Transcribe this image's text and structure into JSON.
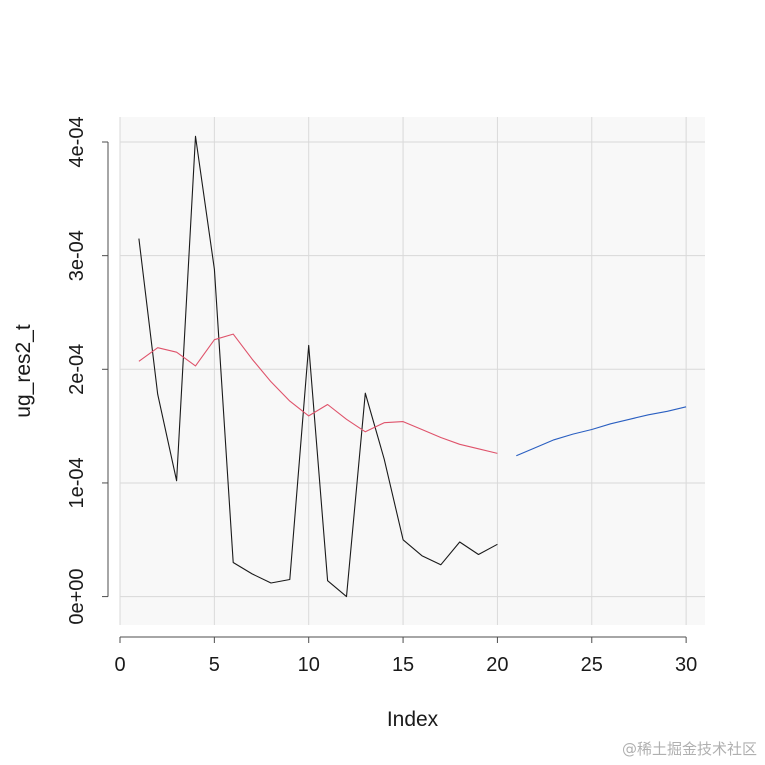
{
  "chart_data": {
    "type": "line",
    "xlabel": "Index",
    "ylabel": "ug_res2_t",
    "xlim": [
      0,
      31
    ],
    "ylim": [
      -2.5e-05,
      0.000422
    ],
    "x_ticks": [
      0,
      5,
      10,
      15,
      20,
      25,
      30
    ],
    "x_tick_labels": [
      "0",
      "5",
      "10",
      "15",
      "20",
      "25",
      "30"
    ],
    "y_ticks": [
      0,
      0.0001,
      0.0002,
      0.0003,
      0.0004
    ],
    "y_tick_labels": [
      "0e+00",
      "1e-04",
      "2e-04",
      "3e-04",
      "4e-04"
    ],
    "grid": true,
    "panel_background": "#f8f8f8",
    "series": [
      {
        "color": "#1a1a1a",
        "x": [
          1,
          2,
          3,
          4,
          5,
          6,
          7,
          8,
          9,
          10,
          11,
          12,
          13,
          14,
          15,
          16,
          17,
          18,
          19,
          20
        ],
        "y": [
          0.000315,
          0.000178,
          0.000102,
          0.000405,
          0.000288,
          3e-05,
          2e-05,
          1.2e-05,
          1.5e-05,
          0.000221,
          1.4e-05,
          0.0,
          0.000179,
          0.000121,
          5e-05,
          3.6e-05,
          2.8e-05,
          4.8e-05,
          3.7e-05,
          4.6e-05
        ]
      },
      {
        "color": "#df536b",
        "x": [
          1,
          2,
          3,
          4,
          5,
          6,
          7,
          8,
          9,
          10,
          11,
          12,
          13,
          14,
          15,
          16,
          17,
          18,
          19,
          20
        ],
        "y": [
          0.000207,
          0.000219,
          0.000215,
          0.000203,
          0.000226,
          0.000231,
          0.000209,
          0.000189,
          0.000172,
          0.000159,
          0.000169,
          0.000156,
          0.000145,
          0.000153,
          0.000154,
          0.000147,
          0.00014,
          0.000134,
          0.00013,
          0.000126
        ]
      },
      {
        "color": "#2a5fc1",
        "x": [
          21,
          22,
          23,
          24,
          25,
          26,
          27,
          28,
          29,
          30
        ],
        "y": [
          0.000124,
          0.000131,
          0.000138,
          0.000143,
          0.000147,
          0.000152,
          0.000156,
          0.00016,
          0.000163,
          0.000167
        ]
      }
    ]
  },
  "watermark": "@稀土掘金技术社区"
}
